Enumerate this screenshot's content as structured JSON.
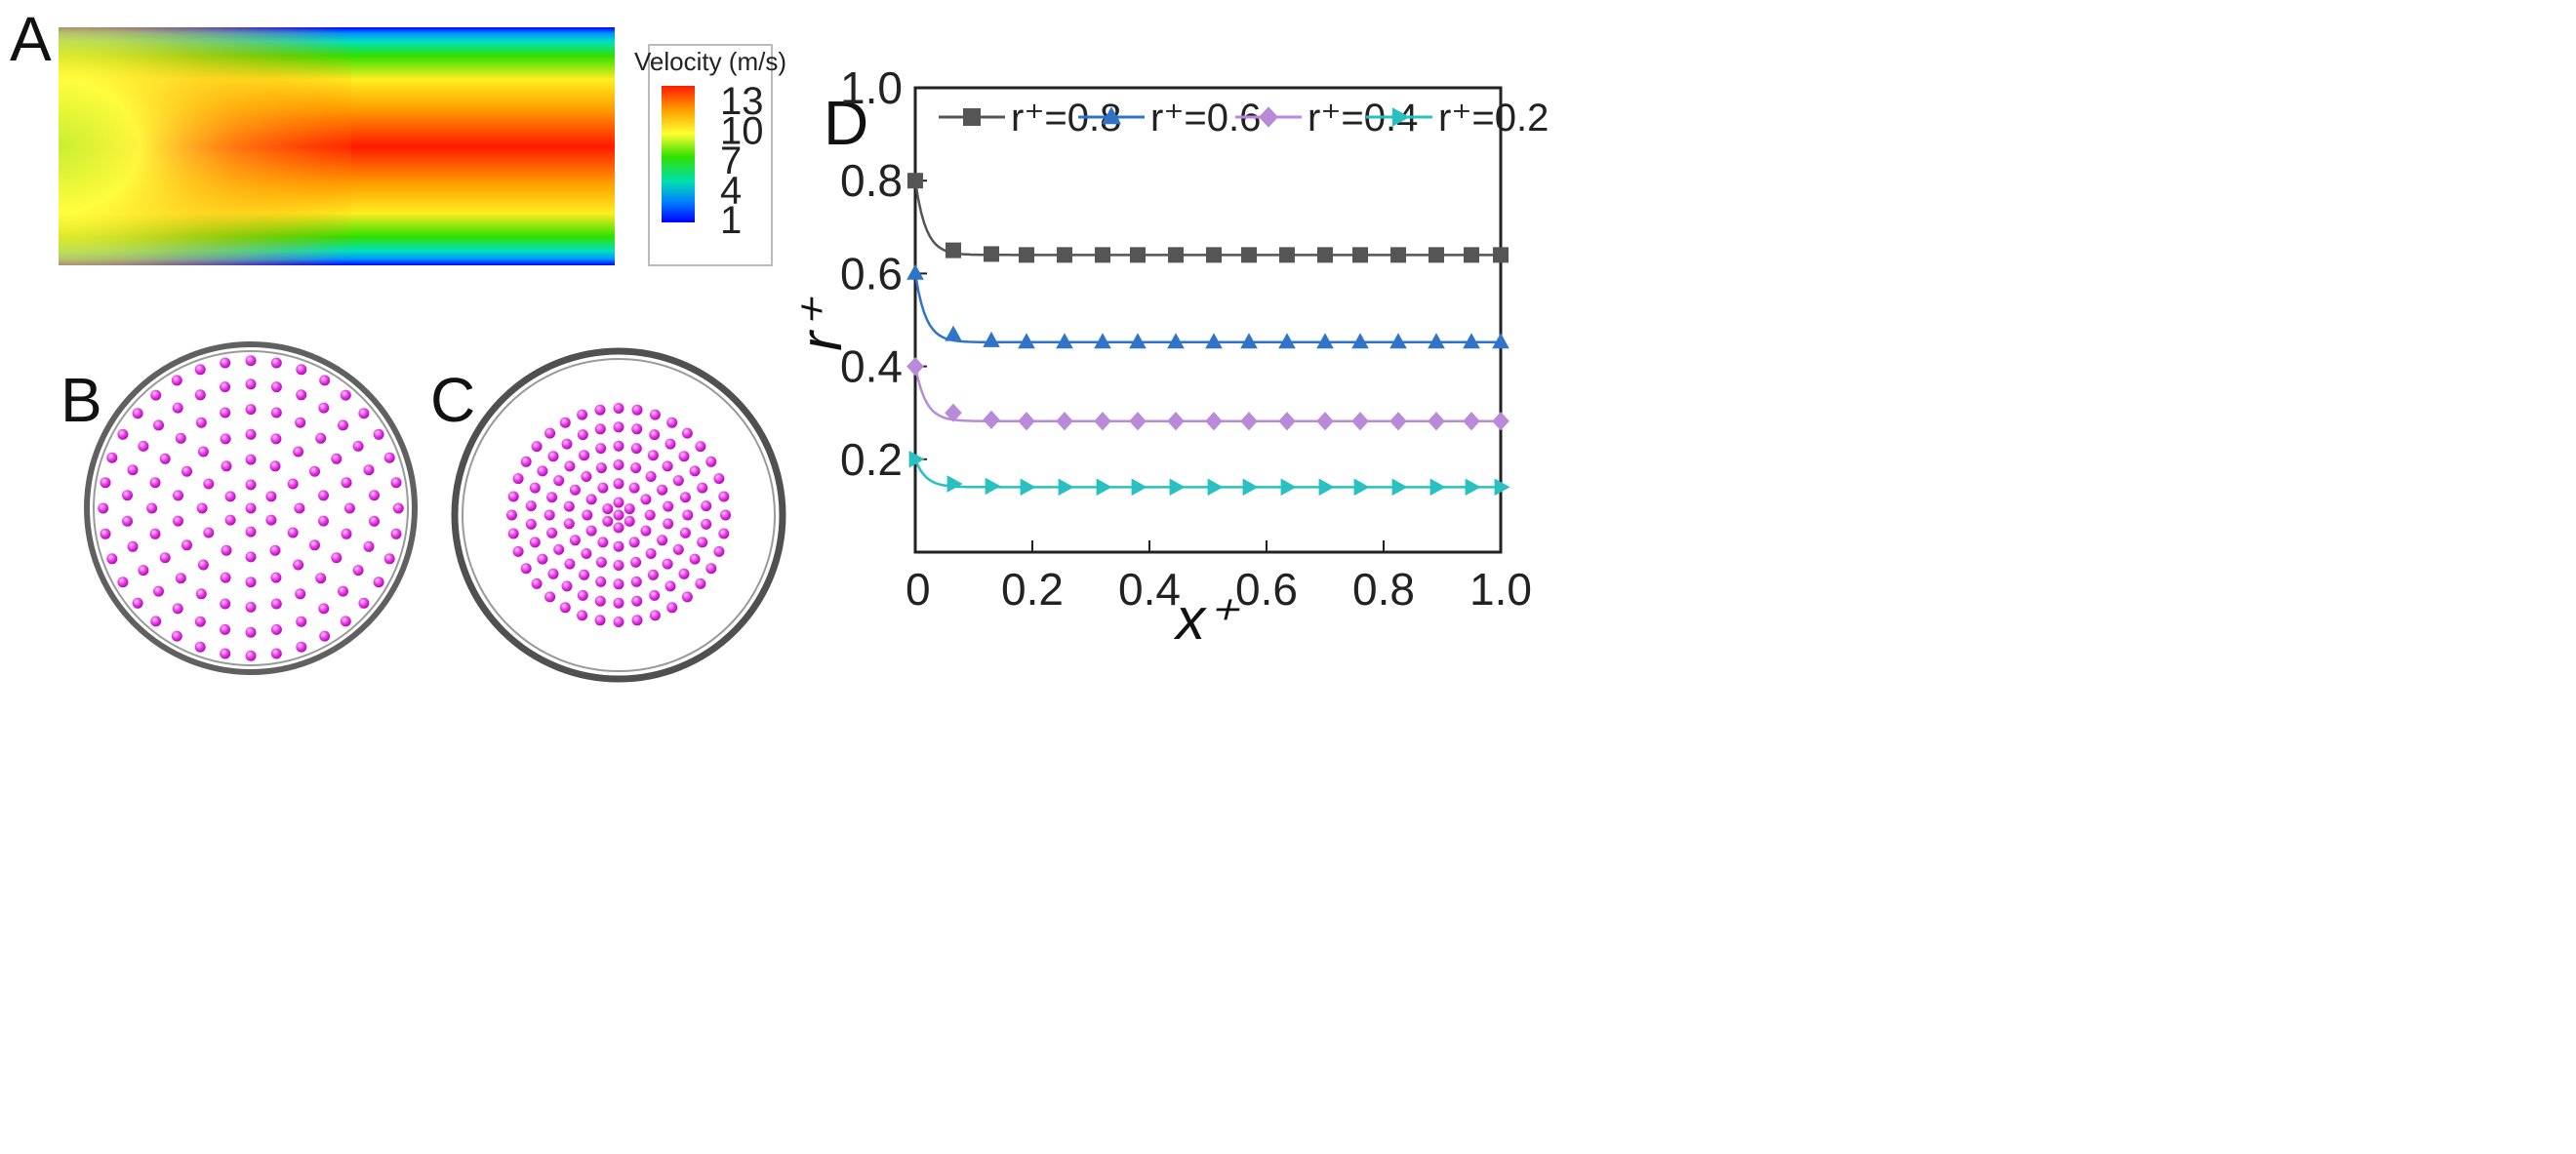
{
  "panels": {
    "a": {
      "label": "A"
    },
    "b": {
      "label": "B",
      "rings": [
        1,
        6,
        12,
        18,
        24,
        30,
        36
      ],
      "ring_radius_frac": [
        0,
        0.15,
        0.31,
        0.47,
        0.63,
        0.79,
        0.94
      ]
    },
    "c": {
      "label": "C",
      "rings": [
        1,
        6,
        12,
        18,
        24,
        30,
        36
      ],
      "ring_radius_frac": [
        0,
        0.08,
        0.2,
        0.32,
        0.44,
        0.56,
        0.68
      ]
    },
    "d": {
      "label": "D"
    }
  },
  "colorbar": {
    "title": "Velocity (m/s)",
    "ticks": [
      "13",
      "10",
      "7",
      "4",
      "1"
    ],
    "colors": [
      "#ff1a00",
      "#ffa000",
      "#ffff30",
      "#30e000",
      "#00e0b0",
      "#0080ff",
      "#0000ff"
    ]
  },
  "chart_data": {
    "type": "line",
    "xlabel": "x⁺",
    "ylabel": "r⁺",
    "xlim": [
      0,
      1
    ],
    "ylim": [
      0,
      1
    ],
    "xticks": [
      "0",
      "0.2",
      "0.4",
      "0.6",
      "0.8",
      "1.0"
    ],
    "yticks": [
      "0.2",
      "0.4",
      "0.6",
      "0.8",
      "1.0"
    ],
    "x": [
      0,
      0.065,
      0.13,
      0.19,
      0.255,
      0.32,
      0.38,
      0.445,
      0.51,
      0.57,
      0.635,
      0.7,
      0.76,
      0.825,
      0.89,
      0.95,
      1.0
    ],
    "series": [
      {
        "name": "r⁺=0.8",
        "legend_label": "r⁺=0.8",
        "color": "#555555",
        "marker": "square",
        "values": [
          0.8,
          0.65,
          0.642,
          0.64,
          0.64,
          0.64,
          0.64,
          0.64,
          0.64,
          0.64,
          0.64,
          0.64,
          0.64,
          0.64,
          0.64,
          0.64,
          0.64
        ]
      },
      {
        "name": "r⁺=0.6",
        "legend_label": "r⁺=0.6",
        "color": "#2f74c9",
        "marker": "triangle-up",
        "values": [
          0.6,
          0.468,
          0.455,
          0.452,
          0.452,
          0.452,
          0.452,
          0.452,
          0.452,
          0.452,
          0.452,
          0.452,
          0.452,
          0.452,
          0.452,
          0.452,
          0.452
        ]
      },
      {
        "name": "r⁺=0.4",
        "legend_label": "r⁺=0.4",
        "color": "#b98ad9",
        "marker": "diamond",
        "values": [
          0.4,
          0.3,
          0.285,
          0.282,
          0.282,
          0.282,
          0.282,
          0.282,
          0.282,
          0.282,
          0.282,
          0.282,
          0.282,
          0.282,
          0.282,
          0.282,
          0.282
        ]
      },
      {
        "name": "r⁺=0.2",
        "legend_label": "r⁺=0.2",
        "color": "#28c0c0",
        "marker": "triangle-right",
        "values": [
          0.2,
          0.147,
          0.142,
          0.14,
          0.14,
          0.14,
          0.14,
          0.14,
          0.14,
          0.14,
          0.14,
          0.14,
          0.14,
          0.14,
          0.14,
          0.14,
          0.14
        ]
      }
    ]
  }
}
